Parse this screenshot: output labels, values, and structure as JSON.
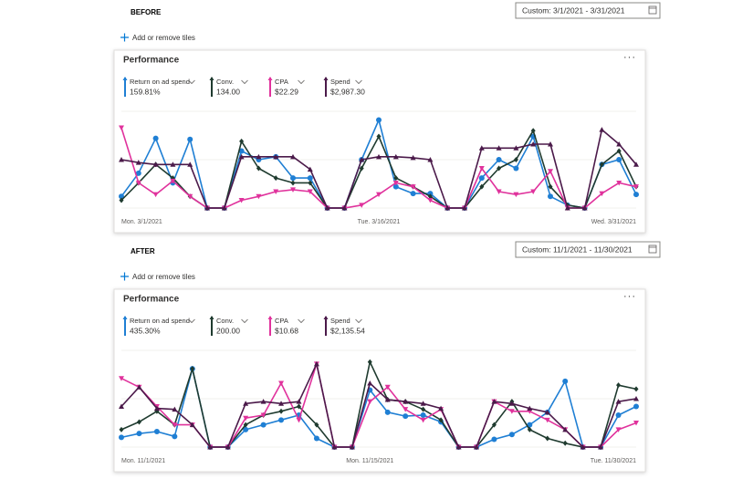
{
  "panels": [
    {
      "label": "BEFORE",
      "date_range": "Custom: 3/1/2021 - 3/31/2021",
      "add_tiles": "Add or remove tiles",
      "chart_data": {
        "type": "line",
        "title": "Performance",
        "categories": [
          "Mon. 3/1/2021",
          null,
          null,
          null,
          null,
          null,
          null,
          null,
          null,
          null,
          null,
          null,
          null,
          null,
          null,
          "Tue. 3/16/2021",
          null,
          null,
          null,
          null,
          null,
          null,
          null,
          null,
          null,
          null,
          null,
          null,
          null,
          null,
          "Wed. 3/31/2021"
        ],
        "ylim": [
          0,
          100
        ],
        "series": [
          {
            "name": "Return on ad spend",
            "value": "159.81%",
            "color": "#1f7fd4",
            "marker": "circle",
            "values": [
              12,
              36,
              72,
              26,
              71,
              0,
              0,
              59,
              50,
              53,
              31,
              31,
              0,
              0,
              50,
              91,
              22,
              15,
              15,
              0,
              0,
              31,
              50,
              41,
              74,
              12,
              3,
              0,
              45,
              50,
              14
            ]
          },
          {
            "name": "Conv.",
            "value": "134.00",
            "color": "#1f3b2f",
            "marker": "diamond",
            "values": [
              8,
              26,
              45,
              31,
              12,
              0,
              0,
              69,
              41,
              31,
              26,
              26,
              0,
              0,
              41,
              74,
              31,
              22,
              12,
              0,
              0,
              22,
              41,
              50,
              80,
              22,
              3,
              0,
              45,
              59,
              22
            ]
          },
          {
            "name": "CPA",
            "value": "$22.29",
            "color": "#e0329c",
            "marker": "triangle-down",
            "values": [
              83,
              26,
              14,
              28,
              12,
              0,
              0,
              8,
              12,
              17,
              19,
              17,
              0,
              0,
              3,
              14,
              26,
              22,
              8,
              0,
              0,
              41,
              17,
              14,
              17,
              38,
              0,
              0,
              15,
              26,
              22
            ]
          },
          {
            "name": "Spend",
            "value": "$2,987.30",
            "color": "#4b1a4a",
            "marker": "triangle-up",
            "values": [
              50,
              47,
              45,
              45,
              45,
              0,
              0,
              53,
              53,
              53,
              53,
              40,
              0,
              0,
              50,
              53,
              53,
              52,
              50,
              0,
              0,
              62,
              62,
              62,
              66,
              66,
              0,
              0,
              81,
              66,
              45
            ]
          }
        ]
      }
    },
    {
      "label": "AFTER",
      "date_range": "Custom: 11/1/2021 - 11/30/2021",
      "add_tiles": "Add or remove tiles",
      "chart_data": {
        "type": "line",
        "title": "Performance",
        "categories": [
          "Mon. 11/1/2021",
          null,
          null,
          null,
          null,
          null,
          null,
          null,
          null,
          null,
          null,
          null,
          null,
          null,
          "Mon. 11/15/2021",
          null,
          null,
          null,
          null,
          null,
          null,
          null,
          null,
          null,
          null,
          null,
          null,
          null,
          null,
          "Tue. 11/30/2021"
        ],
        "ylim": [
          0,
          100
        ],
        "series": [
          {
            "name": "Return on ad spend",
            "value": "435.30%",
            "color": "#1f7fd4",
            "marker": "circle",
            "values": [
              10,
              14,
              16,
              11,
              81,
              0,
              0,
              18,
              23,
              28,
              33,
              9,
              0,
              0,
              59,
              36,
              32,
              33,
              26,
              0,
              0,
              8,
              13,
              23,
              36,
              68,
              0,
              0,
              33,
              42
            ]
          },
          {
            "name": "Conv.",
            "value": "200.00",
            "color": "#1f3b2f",
            "marker": "diamond",
            "values": [
              18,
              26,
              37,
              23,
              81,
              0,
              0,
              23,
              33,
              37,
              42,
              23,
              0,
              0,
              88,
              49,
              47,
              39,
              28,
              0,
              0,
              23,
              47,
              18,
              9,
              4,
              0,
              0,
              64,
              60
            ]
          },
          {
            "name": "CPA",
            "value": "$10.68",
            "color": "#e0329c",
            "marker": "triangle-down",
            "values": [
              71,
              62,
              42,
              23,
              23,
              0,
              0,
              30,
              33,
              66,
              28,
              86,
              0,
              0,
              47,
              62,
              39,
              28,
              39,
              0,
              0,
              47,
              37,
              37,
              28,
              18,
              0,
              0,
              18,
              25
            ]
          },
          {
            "name": "Spend",
            "value": "$2,135.54",
            "color": "#4b1a4a",
            "marker": "triangle-up",
            "values": [
              42,
              62,
              40,
              39,
              23,
              0,
              0,
              45,
              47,
              45,
              47,
              86,
              0,
              0,
              66,
              49,
              47,
              45,
              40,
              0,
              0,
              47,
              45,
              40,
              36,
              18,
              0,
              0,
              47,
              50
            ]
          }
        ]
      }
    }
  ]
}
